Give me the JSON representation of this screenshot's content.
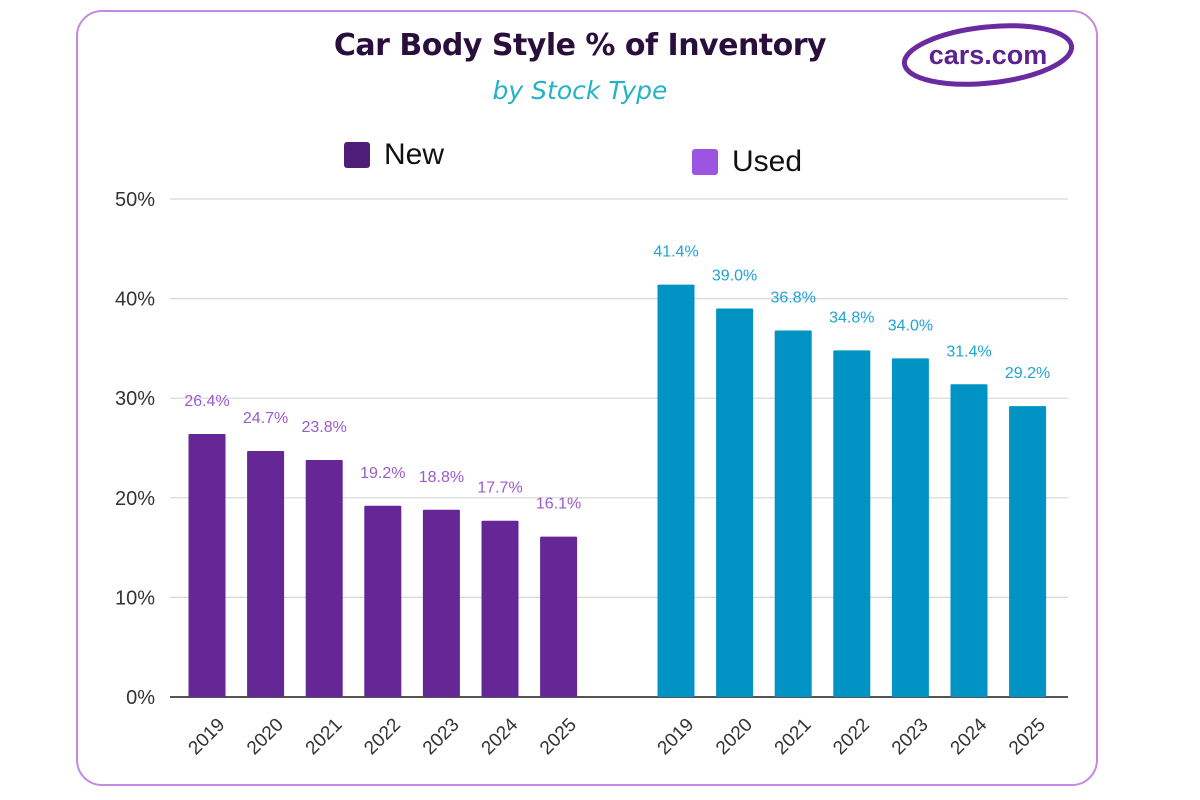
{
  "logo_text": "cars.com",
  "colors": {
    "new": "#652696",
    "used": "#0093c4",
    "new_label": "#9a5bcc",
    "used_label": "#1ea3d6",
    "card_border": "#c38ae3",
    "legend_new": "#4e1d78",
    "legend_used": "#9b55e0"
  },
  "chart_data": {
    "type": "bar",
    "title": "Car Body Style % of Inventory",
    "subtitle": "by Stock Type",
    "legend_placement": "top",
    "categories": [
      "2019",
      "2020",
      "2021",
      "2022",
      "2023",
      "2024",
      "2025"
    ],
    "series": [
      {
        "name": "New",
        "values": [
          26.4,
          24.7,
          23.8,
          19.2,
          18.8,
          17.7,
          16.1
        ],
        "labels": [
          "26.4%",
          "24.7%",
          "23.8%",
          "19.2%",
          "18.8%",
          "17.7%",
          "16.1%"
        ]
      },
      {
        "name": "Used",
        "values": [
          41.4,
          39.0,
          36.8,
          34.8,
          34.0,
          31.4,
          29.2
        ],
        "labels": [
          "41.4%",
          "39.0%",
          "36.8%",
          "34.8%",
          "34.0%",
          "31.4%",
          "29.2%"
        ]
      }
    ],
    "yticks": [
      "0%",
      "10%",
      "20%",
      "30%",
      "40%",
      "50%"
    ],
    "ylim": [
      0,
      50
    ],
    "xlabel": "",
    "ylabel": "",
    "grid": true
  }
}
